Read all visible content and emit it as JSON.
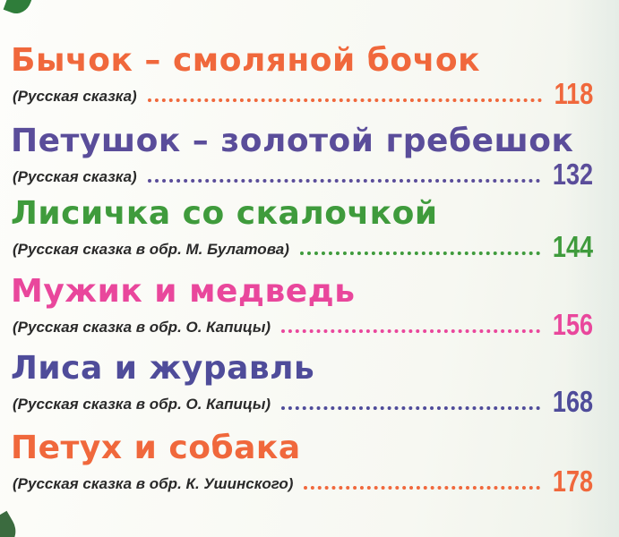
{
  "toc": {
    "entries": [
      {
        "title": "Бычок – смоляной бочок",
        "subtitle": "(Русская сказка)",
        "page": "118",
        "color": "#f0683c"
      },
      {
        "title": "Петушок – золотой гребешок",
        "subtitle": "(Русская сказка)",
        "page": "132",
        "color": "#5a4d9a"
      },
      {
        "title": "Лисичка со скалочкой",
        "subtitle": "(Русская сказка в обр. М. Булатова)",
        "page": "144",
        "color": "#3f9b3c"
      },
      {
        "title": "Мужик и медведь",
        "subtitle": "(Русская сказка в обр. О. Капицы)",
        "page": "156",
        "color": "#e9479c"
      },
      {
        "title": "Лиса и журавль",
        "subtitle": "(Русская сказка в обр. О. Капицы)",
        "page": "168",
        "color": "#4f4c9a"
      },
      {
        "title": "Петух и собака",
        "subtitle": "(Русская сказка в обр. К. Ушинского)",
        "page": "178",
        "color": "#f0683c"
      }
    ]
  }
}
